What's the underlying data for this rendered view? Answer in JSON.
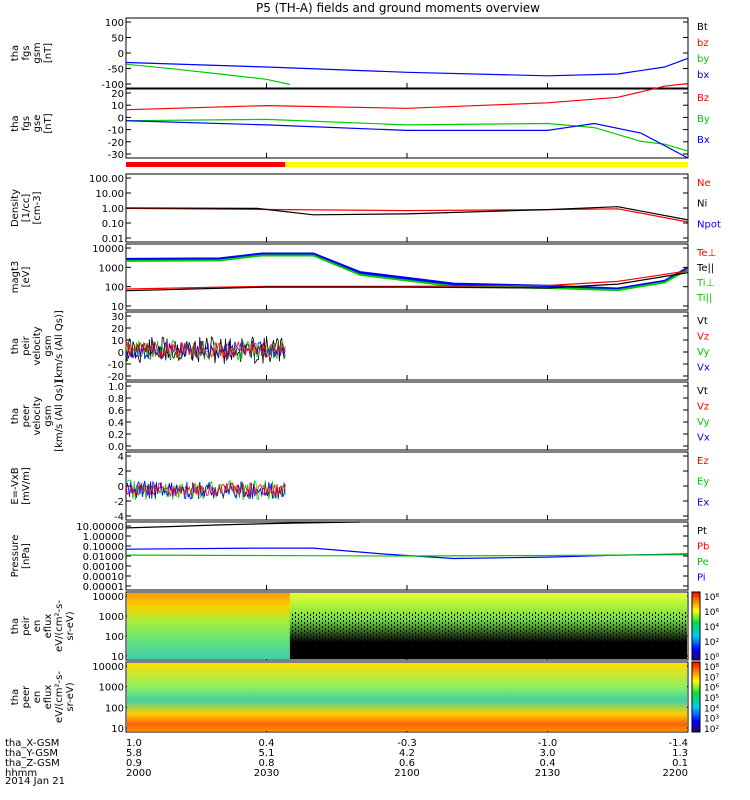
{
  "chart_data": {
    "type": "line",
    "title": "P5 (TH-A) fields and ground moments overview",
    "date": "2014 Jan 21",
    "colors": {
      "black": "#000000",
      "red": "#ff0000",
      "green": "#00cc00",
      "blue": "#0000ff",
      "yellow": "#ffff00"
    },
    "panels": [
      {
        "id": "fgs-gsm",
        "ylabel": [
          "tha",
          "fgs",
          "gsm",
          "[nT]"
        ],
        "ticks": [
          "100",
          "50",
          "0",
          "-50",
          "-100"
        ],
        "legend": [
          {
            "text": "Bt",
            "color": "black"
          },
          {
            "text": "bz",
            "color": "red"
          },
          {
            "text": "by",
            "color": "green"
          },
          {
            "text": "bx",
            "color": "blue"
          }
        ]
      },
      {
        "id": "fgs-gse",
        "ylabel": [
          "tha",
          "fgs",
          "gse",
          "[nT]"
        ],
        "ticks": [
          "20",
          "10",
          "0",
          "-10",
          "-20",
          "-30"
        ],
        "legend": [
          {
            "text": "Bz",
            "color": "red"
          },
          {
            "text": "By",
            "color": "green"
          },
          {
            "text": "Bx",
            "color": "blue"
          }
        ]
      },
      {
        "id": "density",
        "ylabel": [
          "Density",
          "[1/cc]",
          "[cm-3]"
        ],
        "ticks": [
          "100.00",
          "10.00",
          "1.00",
          "0.10",
          "0.01"
        ],
        "legend": [
          {
            "text": "Ne",
            "color": "red"
          },
          {
            "text": "Ni",
            "color": "black"
          },
          {
            "text": "Npot",
            "color": "blue"
          }
        ]
      },
      {
        "id": "temperature",
        "ylabel": [
          "magt3",
          "[eV]"
        ],
        "ticks": [
          "10000",
          "1000",
          "100",
          "10"
        ],
        "legend": [
          {
            "text": "Te⊥",
            "color": "red"
          },
          {
            "text": "Te||",
            "color": "black"
          },
          {
            "text": "Ti⊥",
            "color": "green"
          },
          {
            "text": "Ti||",
            "color": "green"
          }
        ]
      },
      {
        "id": "peir-velocity",
        "ylabel": [
          "tha",
          "peir",
          "velocity",
          "gsm",
          "[km/s (All Qs)]"
        ],
        "ticks": [
          "30",
          "20",
          "10",
          "0",
          "-10",
          "-20"
        ],
        "legend": [
          {
            "text": "Vt",
            "color": "black"
          },
          {
            "text": "Vz",
            "color": "red"
          },
          {
            "text": "Vy",
            "color": "green"
          },
          {
            "text": "Vx",
            "color": "blue"
          }
        ]
      },
      {
        "id": "peer-velocity",
        "ylabel": [
          "tha",
          "peer",
          "velocity",
          "gsm",
          "[km/s (All Qs)]"
        ],
        "ticks": [
          "1.0",
          "0.8",
          "0.6",
          "0.4",
          "0.2",
          "0.0"
        ],
        "legend": [
          {
            "text": "Vt",
            "color": "black"
          },
          {
            "text": "Vz",
            "color": "red"
          },
          {
            "text": "Vy",
            "color": "green"
          },
          {
            "text": "Vx",
            "color": "blue"
          }
        ]
      },
      {
        "id": "efield",
        "ylabel": [
          "E=-VxB",
          "[mV/m]"
        ],
        "ticks": [
          "4",
          "2",
          "0",
          "-2",
          "-4"
        ],
        "legend": [
          {
            "text": "Ez",
            "color": "red"
          },
          {
            "text": "Ey",
            "color": "green"
          },
          {
            "text": "Ex",
            "color": "blue"
          }
        ]
      },
      {
        "id": "pressure",
        "ylabel": [
          "Pressure",
          "[nPa]"
        ],
        "ticks": [
          "10.00000",
          "1.00000",
          "0.10000",
          "0.01000",
          "0.00100",
          "0.00010",
          "0.00001"
        ],
        "legend": [
          {
            "text": "Pt",
            "color": "black"
          },
          {
            "text": "Pb",
            "color": "red"
          },
          {
            "text": "Pe",
            "color": "green"
          },
          {
            "text": "Pi",
            "color": "blue"
          }
        ]
      },
      {
        "id": "peir-spec",
        "ylabel": [
          "tha",
          "peir",
          "en",
          "eflux",
          "eV/(cm²-s-",
          "sr-eV)"
        ],
        "ticks": [
          "10000",
          "1000",
          "100",
          "10"
        ],
        "legend": []
      },
      {
        "id": "peer-spec",
        "ylabel": [
          "tha",
          "peer",
          "en",
          "eflux",
          "eV/(cm²-s-",
          "sr-eV)"
        ],
        "ticks": [
          "10000",
          "1000",
          "100",
          "10"
        ],
        "legend": []
      }
    ],
    "colorbar1_ticks": [
      "10⁸",
      "10⁶",
      "10⁴",
      "10²",
      "10⁰"
    ],
    "colorbar2_ticks": [
      "10⁸",
      "10⁷",
      "10⁶",
      "10⁵",
      "10⁴",
      "10³",
      "10²"
    ],
    "ephemeris": {
      "row_labels": [
        "tha_X-GSM",
        "tha_Y-GSM",
        "tha_Z-GSM",
        "hhmm"
      ],
      "columns": [
        {
          "x": "1.0",
          "y": "5.8",
          "z": "0.9",
          "t": "2000"
        },
        {
          "x": "0.4",
          "y": "5.1",
          "z": "0.8",
          "t": "2030"
        },
        {
          "x": "-0.3",
          "y": "4.2",
          "z": "0.6",
          "t": "2100"
        },
        {
          "x": "-1.0",
          "y": "3.0",
          "z": "0.4",
          "t": "2130"
        },
        {
          "x": "-1.4",
          "y": "1.3",
          "z": "0.1",
          "t": "2200"
        }
      ]
    },
    "x_minutes": [
      0,
      30,
      60,
      90,
      120
    ],
    "series": {
      "bx_gsm": [
        [
          0,
          -27
        ],
        [
          30,
          -40
        ],
        [
          60,
          -55
        ],
        [
          90,
          -65
        ],
        [
          105,
          -60
        ],
        [
          115,
          -40
        ],
        [
          120,
          -15
        ]
      ],
      "by_gsm": [
        [
          0,
          -32
        ],
        [
          10,
          -45
        ],
        [
          20,
          -60
        ],
        [
          30,
          -75
        ],
        [
          35,
          -90
        ]
      ],
      "bz_gse": [
        [
          0,
          5
        ],
        [
          30,
          8
        ],
        [
          60,
          6
        ],
        [
          90,
          10
        ],
        [
          105,
          14
        ],
        [
          110,
          18
        ],
        [
          115,
          22
        ],
        [
          120,
          24
        ]
      ],
      "by_gse": [
        [
          0,
          -3
        ],
        [
          30,
          -2
        ],
        [
          60,
          -6
        ],
        [
          90,
          -5
        ],
        [
          100,
          -8
        ],
        [
          110,
          -18
        ],
        [
          115,
          -20
        ],
        [
          120,
          -25
        ]
      ],
      "bx_gse": [
        [
          0,
          -3
        ],
        [
          30,
          -6
        ],
        [
          60,
          -10
        ],
        [
          90,
          -10
        ],
        [
          100,
          -5
        ],
        [
          110,
          -12
        ],
        [
          120,
          -30
        ]
      ],
      "ne": [
        [
          0,
          0.95
        ],
        [
          60,
          0.7
        ],
        [
          90,
          0.8
        ],
        [
          105,
          0.9
        ],
        [
          120,
          0.15
        ]
      ],
      "ni": [
        [
          0,
          1.0
        ],
        [
          28,
          0.95
        ],
        [
          40,
          0.4
        ],
        [
          60,
          0.45
        ],
        [
          90,
          0.8
        ],
        [
          105,
          1.2
        ],
        [
          120,
          0.2
        ]
      ],
      "ti_perp": [
        [
          0,
          2000
        ],
        [
          20,
          2100
        ],
        [
          29,
          3500
        ],
        [
          40,
          3500
        ],
        [
          50,
          500
        ],
        [
          70,
          150
        ],
        [
          90,
          120
        ],
        [
          105,
          90
        ],
        [
          115,
          200
        ],
        [
          120,
          800
        ]
      ],
      "ti_par": [
        [
          0,
          1700
        ],
        [
          20,
          1800
        ],
        [
          29,
          3000
        ],
        [
          40,
          3000
        ],
        [
          50,
          400
        ],
        [
          70,
          120
        ],
        [
          90,
          100
        ],
        [
          105,
          80
        ],
        [
          115,
          180
        ],
        [
          120,
          700
        ]
      ],
      "te_perp": [
        [
          0,
          90
        ],
        [
          30,
          120
        ],
        [
          60,
          120
        ],
        [
          90,
          130
        ],
        [
          105,
          200
        ],
        [
          120,
          600
        ]
      ],
      "te_par": [
        [
          0,
          75
        ],
        [
          30,
          110
        ],
        [
          60,
          110
        ],
        [
          90,
          100
        ],
        [
          105,
          150
        ],
        [
          120,
          500
        ]
      ],
      "pb": [
        [
          0,
          3
        ],
        [
          10,
          4
        ],
        [
          20,
          5.5
        ],
        [
          35,
          8
        ],
        [
          50,
          10
        ]
      ],
      "pi": [
        [
          0,
          0.04
        ],
        [
          29,
          0.05
        ],
        [
          40,
          0.05
        ],
        [
          55,
          0.015
        ],
        [
          70,
          0.006
        ],
        [
          90,
          0.008
        ],
        [
          105,
          0.012
        ],
        [
          120,
          0.015
        ]
      ],
      "pe": [
        [
          0,
          0.012
        ],
        [
          60,
          0.01
        ],
        [
          90,
          0.011
        ],
        [
          120,
          0.013
        ]
      ]
    },
    "markers": [
      {
        "panel": "fgs-gse",
        "red_until_minute": 34,
        "yellow_from_minute": 34
      }
    ]
  }
}
